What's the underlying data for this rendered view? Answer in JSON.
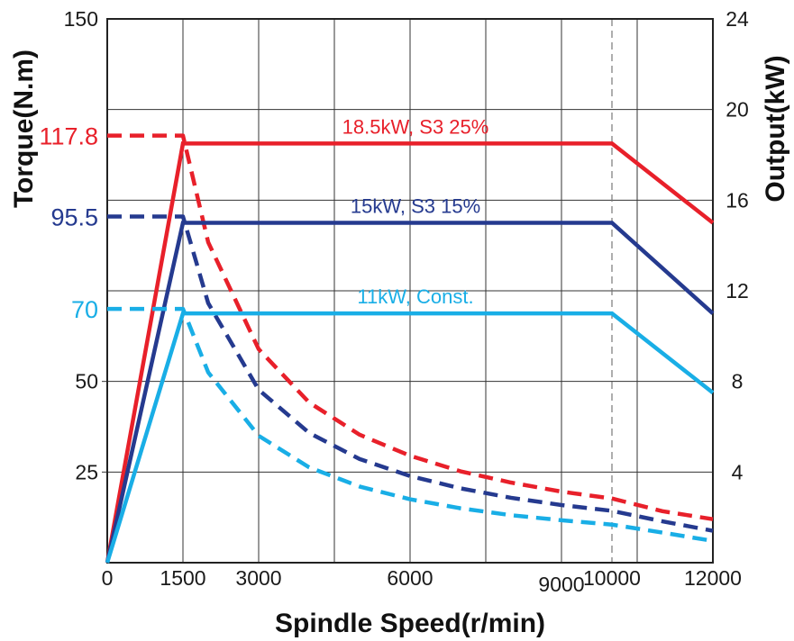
{
  "chart_data": {
    "type": "line",
    "xlabel": "Spindle Speed(r/min)",
    "ylabel_left": "Torque(N.m)",
    "ylabel_right": "Output(kW)",
    "xlim": [
      0,
      12000
    ],
    "ylim_left": [
      0,
      150
    ],
    "ylim_right": [
      0,
      24
    ],
    "x_tick_labels": [
      "0",
      "1500",
      "3000",
      "6000",
      "9000",
      "10000",
      "12000"
    ],
    "x_tick_values": [
      0,
      1500,
      3000,
      6000,
      9000,
      10000,
      12000
    ],
    "x_gridlines": [
      1500,
      3000,
      4500,
      6000,
      7500,
      9000,
      10500,
      12000
    ],
    "x_dashed_reference": 10000,
    "y_left_tick_labels": [
      "25",
      "50",
      "150"
    ],
    "y_left_tick_values": [
      25,
      50,
      150
    ],
    "y_right_tick_labels": [
      "4",
      "8",
      "12",
      "16",
      "20",
      "24"
    ],
    "y_right_tick_values": [
      4,
      8,
      12,
      16,
      20,
      24
    ],
    "grid": true,
    "series": [
      {
        "name": "18.5kW, S3 25%",
        "color": "#e8202a",
        "rated_torque_label": "117.8",
        "rated_torque": 117.8,
        "base_speed": 1500,
        "constant_power_end_speed": 10000,
        "power_points": [
          [
            0,
            0
          ],
          [
            1500,
            18.5
          ],
          [
            10000,
            18.5
          ],
          [
            12000,
            15.0
          ]
        ],
        "torque_points": [
          [
            0,
            117.8
          ],
          [
            1500,
            117.8
          ],
          [
            2000,
            88.4
          ],
          [
            3000,
            58.9
          ],
          [
            4000,
            44.2
          ],
          [
            5000,
            35.3
          ],
          [
            6000,
            29.5
          ],
          [
            7000,
            25.2
          ],
          [
            8000,
            22.1
          ],
          [
            9000,
            19.6
          ],
          [
            10000,
            17.7
          ],
          [
            11000,
            14.2
          ],
          [
            12000,
            12.0
          ]
        ]
      },
      {
        "name": "15kW, S3 15%",
        "color": "#253a8f",
        "rated_torque_label": "95.5",
        "rated_torque": 95.5,
        "base_speed": 1500,
        "constant_power_end_speed": 10000,
        "power_points": [
          [
            0,
            0
          ],
          [
            1500,
            15.0
          ],
          [
            10000,
            15.0
          ],
          [
            12000,
            11.0
          ]
        ],
        "torque_points": [
          [
            0,
            95.5
          ],
          [
            1500,
            95.5
          ],
          [
            2000,
            71.6
          ],
          [
            3000,
            47.7
          ],
          [
            4000,
            35.8
          ],
          [
            5000,
            28.6
          ],
          [
            6000,
            23.9
          ],
          [
            7000,
            20.5
          ],
          [
            8000,
            17.9
          ],
          [
            9000,
            15.9
          ],
          [
            10000,
            14.3
          ],
          [
            11000,
            11.4
          ],
          [
            12000,
            8.8
          ]
        ]
      },
      {
        "name": "11kW, Const.",
        "color": "#19aee6",
        "rated_torque_label": "70",
        "rated_torque": 70,
        "base_speed": 1500,
        "constant_power_end_speed": 10000,
        "power_points": [
          [
            0,
            0
          ],
          [
            1500,
            11.0
          ],
          [
            10000,
            11.0
          ],
          [
            12000,
            7.5
          ]
        ],
        "torque_points": [
          [
            0,
            70
          ],
          [
            1500,
            70
          ],
          [
            2000,
            52.5
          ],
          [
            3000,
            35.0
          ],
          [
            4000,
            26.3
          ],
          [
            5000,
            21.0
          ],
          [
            6000,
            17.5
          ],
          [
            7000,
            15.0
          ],
          [
            8000,
            13.1
          ],
          [
            9000,
            11.7
          ],
          [
            10000,
            10.5
          ],
          [
            11000,
            8.3
          ],
          [
            12000,
            6.0
          ]
        ]
      }
    ]
  }
}
